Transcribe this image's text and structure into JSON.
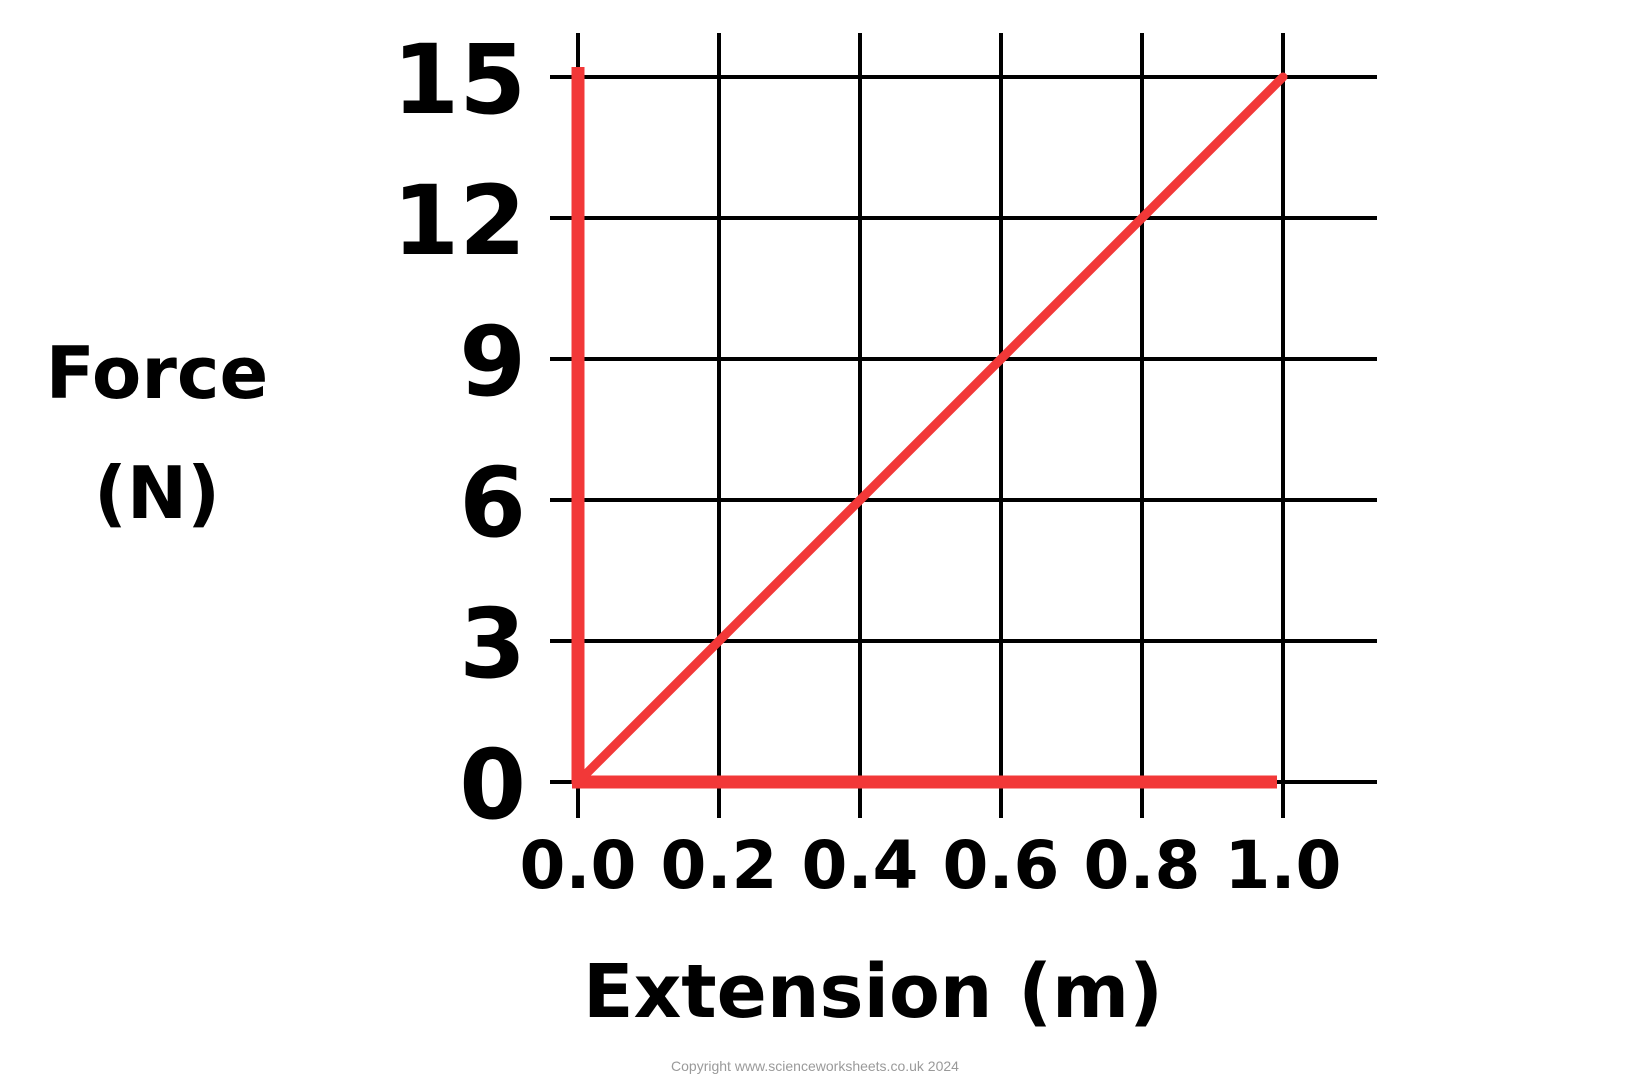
{
  "chart_data": {
    "type": "line",
    "title": "",
    "xlabel": "Extension (m)",
    "ylabel_lines": [
      "Force",
      "(N)"
    ],
    "x_ticks": [
      "0.0",
      "0.2",
      "0.4",
      "0.6",
      "0.8",
      "1.0"
    ],
    "y_ticks": [
      "0",
      "3",
      "6",
      "9",
      "12",
      "15"
    ],
    "xlim": [
      0,
      1.0
    ],
    "ylim": [
      0,
      15
    ],
    "grid": true,
    "series": [
      {
        "x": [
          0.0,
          1.0
        ],
        "y": [
          0,
          15
        ],
        "color": "#f23838"
      }
    ],
    "axis_color": "#f23838",
    "grid_color": "#000000"
  },
  "footer": {
    "copyright": "Copyright www.scienceworksheets.co.uk 2024"
  }
}
